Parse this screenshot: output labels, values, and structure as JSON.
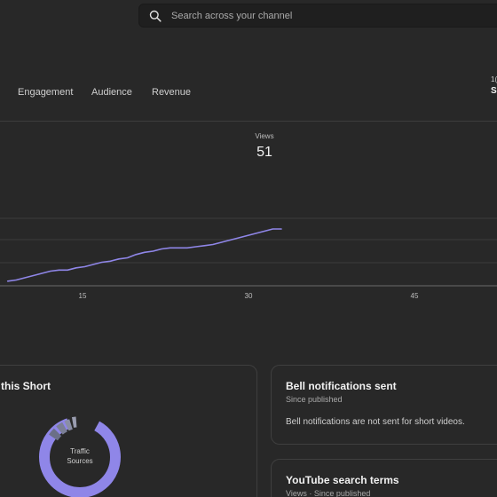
{
  "search": {
    "placeholder": "Search across your channel"
  },
  "tabs": [
    {
      "label": "Engagement"
    },
    {
      "label": "Audience"
    },
    {
      "label": "Revenue"
    }
  ],
  "edge": {
    "top": "1(",
    "bottom": "S"
  },
  "metric": {
    "label": "Views",
    "value": "51"
  },
  "chart_data": {
    "type": "line",
    "x": [
      1,
      2,
      3,
      4,
      5,
      6,
      7,
      8,
      9,
      10,
      11,
      12,
      13,
      14,
      15,
      16,
      17,
      18,
      19,
      20,
      21,
      22,
      23,
      24,
      25,
      26,
      27,
      28,
      29,
      30,
      31,
      32,
      33
    ],
    "values": [
      1,
      2,
      4,
      6,
      8,
      10,
      11,
      11,
      13,
      14,
      16,
      18,
      19,
      21,
      22,
      25,
      27,
      28,
      30,
      31,
      31,
      31,
      32,
      33,
      34,
      36,
      38,
      40,
      42,
      44,
      46,
      48,
      48
    ],
    "xticks": [
      "15",
      "30",
      "45"
    ],
    "color": "#8f86e8"
  },
  "cards": {
    "left": {
      "title": "this Short"
    },
    "bell": {
      "title": "Bell notifications sent",
      "subtitle": "Since published",
      "body": "Bell notifications are not sent for short videos."
    },
    "search_terms": {
      "title": "YouTube search terms",
      "subtitle": "Views · Since published"
    }
  },
  "donut": {
    "label_line1": "Traffic",
    "label_line2": "Sources",
    "color": "#8f86e8"
  }
}
